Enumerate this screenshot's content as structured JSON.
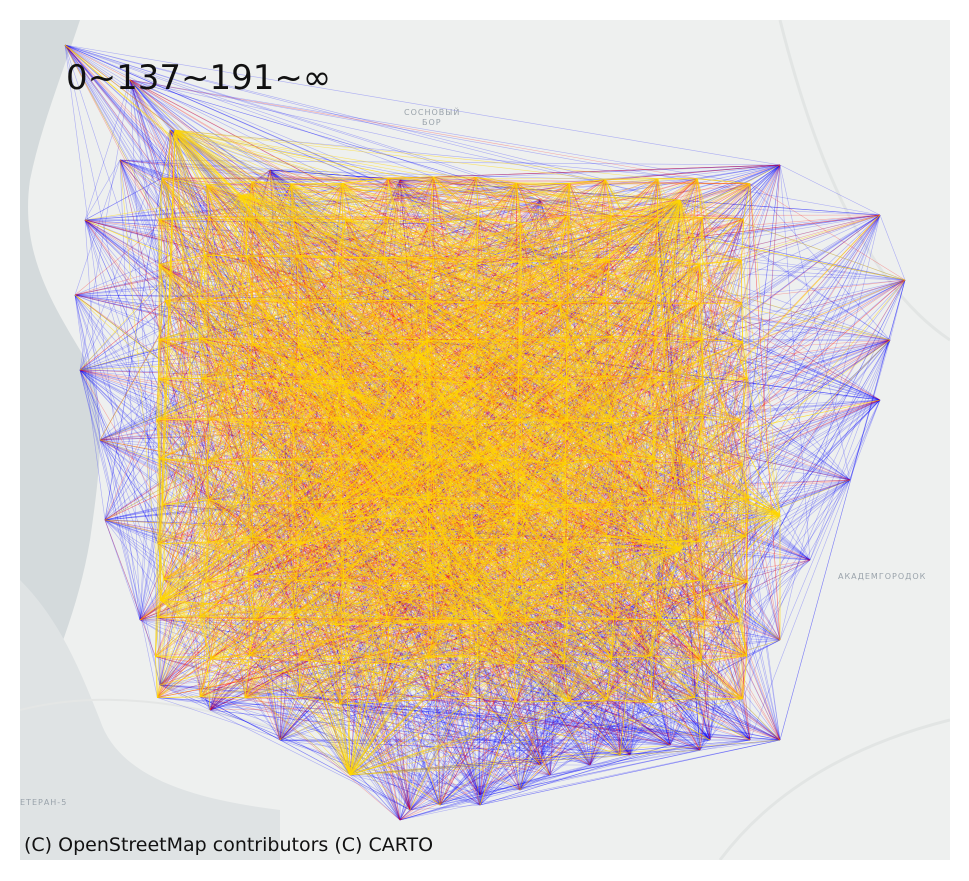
{
  "legend": {
    "text": "0~137~191~∞",
    "bins": [
      {
        "range": "0~137",
        "color": "#0000ff"
      },
      {
        "range": "137~191",
        "color": "#ff0000"
      },
      {
        "range": "191~∞",
        "color": "#ffd700"
      }
    ]
  },
  "attribution": "(C) OpenStreetMap contributors (C) CARTO",
  "place_labels": {
    "sosnovy_bor_1": "СОСНОВЫЙ",
    "sosnovy_bor_2": "БОР",
    "akademgorodok": "АКАДЕМГОРОДОК",
    "veteran": "ЕТЕРАН-5"
  },
  "colors": {
    "basemap": "#eef0ef",
    "water": "#d4dadc",
    "low": "#0000ff",
    "mid": "#ff0000",
    "high": "#ffd700"
  }
}
